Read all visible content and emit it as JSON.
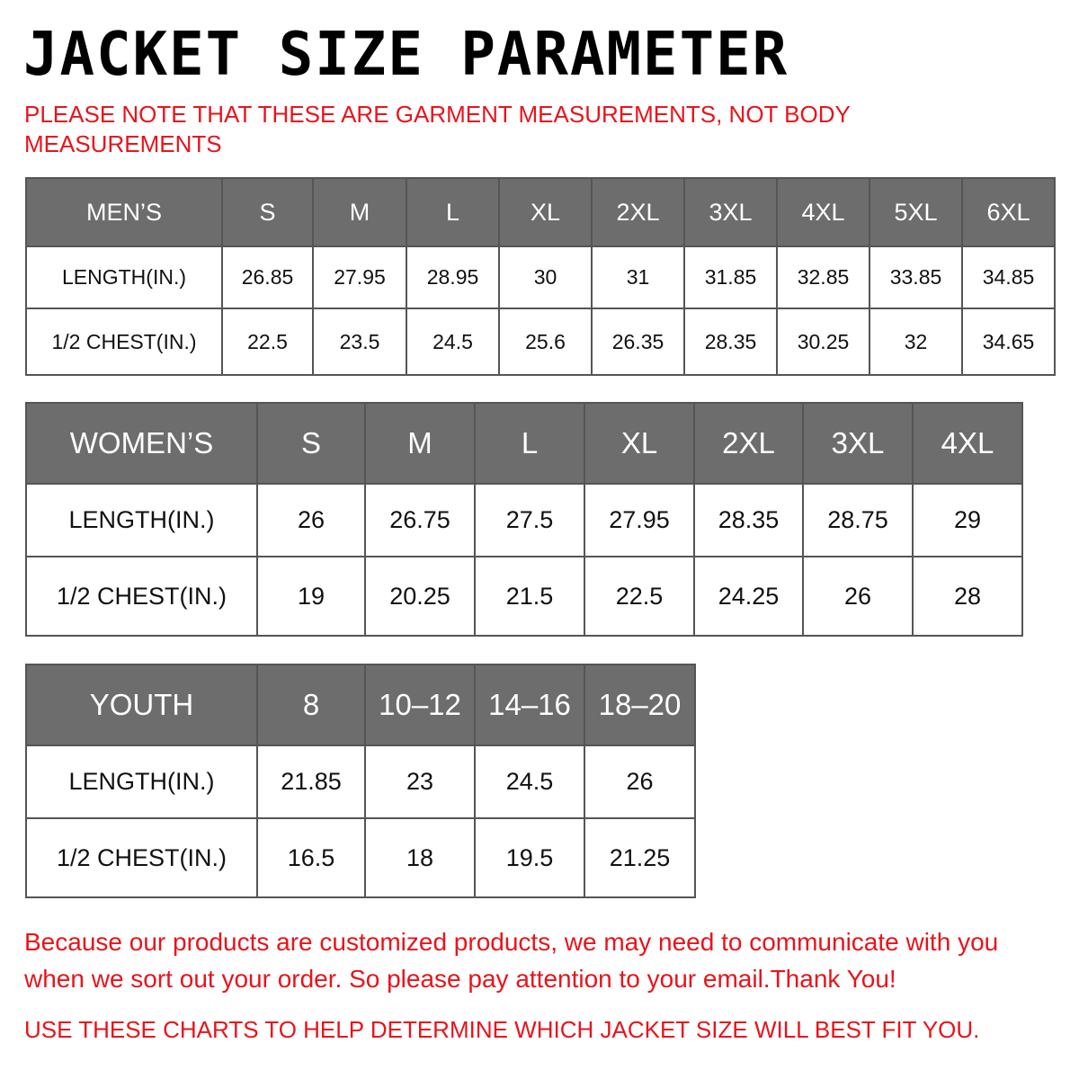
{
  "title": "JACKET SIZE PARAMETER",
  "note": "PLEASE NOTE THAT THESE ARE GARMENT MEASUREMENTS, NOT BODY MEASUREMENTS",
  "colors": {
    "header_bg": "#6d6d6d",
    "accent_red": "#e8141b"
  },
  "tables": [
    {
      "header": "MEN’S",
      "sizes": [
        "S",
        "M",
        "L",
        "XL",
        "2XL",
        "3XL",
        "4XL",
        "5XL",
        "6XL"
      ],
      "rows": [
        {
          "label": "LENGTH(IN.)",
          "values": [
            "26.85",
            "27.95",
            "28.95",
            "30",
            "31",
            "31.85",
            "32.85",
            "33.85",
            "34.85"
          ]
        },
        {
          "label": "1/2 CHEST(IN.)",
          "values": [
            "22.5",
            "23.5",
            "24.5",
            "25.6",
            "26.35",
            "28.35",
            "30.25",
            "32",
            "34.65"
          ]
        }
      ]
    },
    {
      "header": "WOMEN’S",
      "sizes": [
        "S",
        "M",
        "L",
        "XL",
        "2XL",
        "3XL",
        "4XL"
      ],
      "rows": [
        {
          "label": "LENGTH(IN.)",
          "values": [
            "26",
            "26.75",
            "27.5",
            "27.95",
            "28.35",
            "28.75",
            "29"
          ]
        },
        {
          "label": "1/2 CHEST(IN.)",
          "values": [
            "19",
            "20.25",
            "21.5",
            "22.5",
            "24.25",
            "26",
            "28"
          ]
        }
      ]
    },
    {
      "header": "YOUTH",
      "sizes": [
        "8",
        "10–12",
        "14–16",
        "18–20"
      ],
      "rows": [
        {
          "label": "LENGTH(IN.)",
          "values": [
            "21.85",
            "23",
            "24.5",
            "26"
          ]
        },
        {
          "label": "1/2 CHEST(IN.)",
          "values": [
            "16.5",
            "18",
            "19.5",
            "21.25"
          ]
        }
      ]
    }
  ],
  "footer": "Because our products are customized products, we may need to communicate with you when we sort out your order. So please pay attention to your email.Thank You!",
  "footer2": "USE THESE CHARTS TO HELP DETERMINE WHICH JACKET SIZE WILL BEST FIT YOU."
}
